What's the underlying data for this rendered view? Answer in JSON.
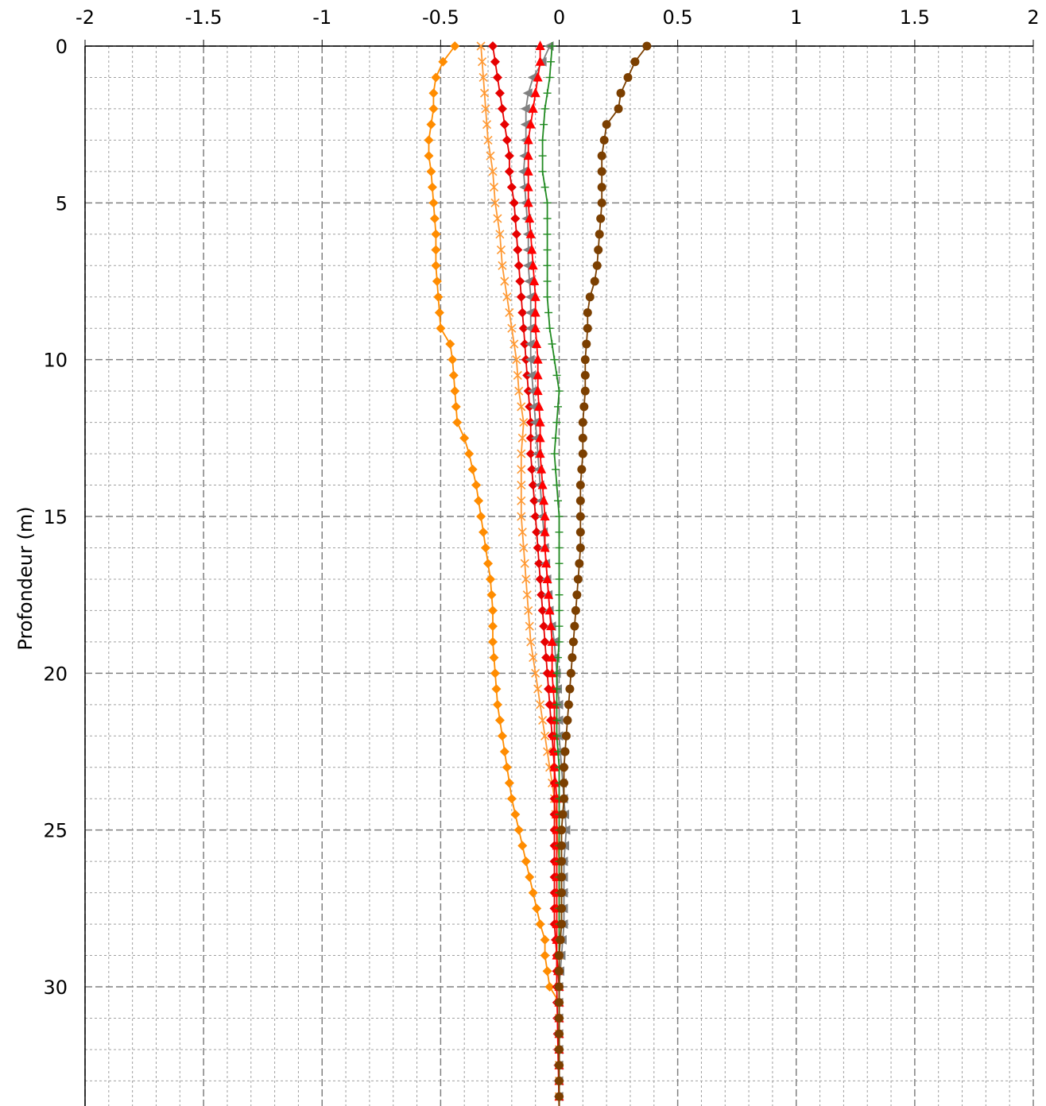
{
  "chart_data": {
    "type": "line",
    "title": "",
    "xlabel": "",
    "ylabel": "Profondeur (m)",
    "xlim": [
      -2,
      2
    ],
    "ylim": [
      0,
      33.8
    ],
    "y_inverted": true,
    "x_axis_position": "top",
    "x_ticks": [
      "-2",
      "-1.5",
      "-1",
      "-0.5",
      "0",
      "0.5",
      "1",
      "1.5",
      "2"
    ],
    "y_ticks": [
      "0",
      "5",
      "10",
      "15",
      "20",
      "25",
      "30"
    ],
    "grid": true,
    "legend": "none",
    "series": [
      {
        "color": "#ff8c00",
        "marker": "diamond",
        "points": [
          [
            -0.44,
            0
          ],
          [
            -0.49,
            0.5
          ],
          [
            -0.52,
            1
          ],
          [
            -0.53,
            1.5
          ],
          [
            -0.53,
            2
          ],
          [
            -0.54,
            2.5
          ],
          [
            -0.55,
            3
          ],
          [
            -0.55,
            3.5
          ],
          [
            -0.54,
            4
          ],
          [
            -0.53,
            5
          ],
          [
            -0.52,
            6
          ],
          [
            -0.52,
            7
          ],
          [
            -0.51,
            8
          ],
          [
            -0.5,
            9
          ],
          [
            -0.46,
            9.5
          ],
          [
            -0.45,
            10
          ],
          [
            -0.44,
            11
          ],
          [
            -0.43,
            12
          ],
          [
            -0.4,
            12.5
          ],
          [
            -0.38,
            13
          ],
          [
            -0.35,
            14
          ],
          [
            -0.33,
            15
          ],
          [
            -0.31,
            16
          ],
          [
            -0.29,
            17
          ],
          [
            -0.28,
            18
          ],
          [
            -0.28,
            19
          ],
          [
            -0.27,
            20
          ],
          [
            -0.26,
            21
          ],
          [
            -0.24,
            22
          ],
          [
            -0.22,
            23
          ],
          [
            -0.2,
            24
          ],
          [
            -0.17,
            25
          ],
          [
            -0.14,
            26
          ],
          [
            -0.11,
            27
          ],
          [
            -0.08,
            28
          ],
          [
            -0.06,
            28.5
          ],
          [
            -0.06,
            29
          ],
          [
            -0.04,
            30
          ],
          [
            0,
            30.5
          ],
          [
            0,
            34
          ]
        ]
      },
      {
        "color": "#ff9933",
        "marker": "x",
        "points": [
          [
            -0.33,
            0
          ],
          [
            -0.32,
            1
          ],
          [
            -0.31,
            2
          ],
          [
            -0.3,
            3
          ],
          [
            -0.28,
            4
          ],
          [
            -0.27,
            5
          ],
          [
            -0.25,
            6
          ],
          [
            -0.24,
            7
          ],
          [
            -0.22,
            8
          ],
          [
            -0.2,
            9
          ],
          [
            -0.18,
            10
          ],
          [
            -0.17,
            11
          ],
          [
            -0.15,
            12
          ],
          [
            -0.16,
            13
          ],
          [
            -0.16,
            14
          ],
          [
            -0.16,
            15
          ],
          [
            -0.15,
            16
          ],
          [
            -0.14,
            17
          ],
          [
            -0.13,
            18
          ],
          [
            -0.12,
            19
          ],
          [
            -0.1,
            20
          ],
          [
            -0.08,
            21
          ],
          [
            -0.06,
            22
          ],
          [
            -0.04,
            23
          ],
          [
            -0.02,
            24
          ],
          [
            -0.01,
            25
          ],
          [
            0,
            26
          ],
          [
            0,
            27
          ],
          [
            0,
            28
          ],
          [
            0,
            29
          ],
          [
            0,
            30
          ],
          [
            0,
            34
          ]
        ]
      },
      {
        "color": "#e60000",
        "marker": "diamond",
        "points": [
          [
            -0.28,
            0
          ],
          [
            -0.27,
            0.5
          ],
          [
            -0.26,
            1
          ],
          [
            -0.25,
            1.5
          ],
          [
            -0.24,
            2
          ],
          [
            -0.23,
            2.5
          ],
          [
            -0.22,
            3
          ],
          [
            -0.21,
            3.5
          ],
          [
            -0.21,
            4
          ],
          [
            -0.2,
            4.5
          ],
          [
            -0.19,
            5
          ],
          [
            -0.18,
            6
          ],
          [
            -0.17,
            7
          ],
          [
            -0.16,
            8
          ],
          [
            -0.15,
            9
          ],
          [
            -0.14,
            10
          ],
          [
            -0.13,
            11
          ],
          [
            -0.12,
            12
          ],
          [
            -0.12,
            13
          ],
          [
            -0.11,
            14
          ],
          [
            -0.1,
            15
          ],
          [
            -0.09,
            16
          ],
          [
            -0.08,
            17
          ],
          [
            -0.07,
            18
          ],
          [
            -0.06,
            19
          ],
          [
            -0.05,
            20
          ],
          [
            -0.04,
            21
          ],
          [
            -0.03,
            22
          ],
          [
            -0.02,
            23
          ],
          [
            -0.02,
            24
          ],
          [
            -0.02,
            25
          ],
          [
            -0.02,
            26
          ],
          [
            -0.02,
            27
          ],
          [
            -0.02,
            28
          ],
          [
            -0.01,
            29
          ],
          [
            -0.01,
            30
          ],
          [
            0,
            34
          ]
        ]
      },
      {
        "color": "#808080",
        "marker": "triangle-left",
        "points": [
          [
            -0.04,
            0
          ],
          [
            -0.07,
            0.5
          ],
          [
            -0.11,
            1
          ],
          [
            -0.13,
            1.5
          ],
          [
            -0.14,
            2
          ],
          [
            -0.14,
            3
          ],
          [
            -0.15,
            4
          ],
          [
            -0.14,
            5
          ],
          [
            -0.13,
            6
          ],
          [
            -0.13,
            7
          ],
          [
            -0.12,
            8
          ],
          [
            -0.12,
            9
          ],
          [
            -0.12,
            10
          ],
          [
            -0.11,
            11
          ],
          [
            -0.1,
            12
          ],
          [
            -0.09,
            13
          ],
          [
            -0.08,
            14
          ],
          [
            -0.07,
            15
          ],
          [
            -0.06,
            16
          ],
          [
            -0.05,
            17
          ],
          [
            -0.04,
            18
          ],
          [
            -0.02,
            19
          ],
          [
            -0.01,
            20
          ],
          [
            0,
            21
          ],
          [
            0,
            22
          ],
          [
            0.01,
            23
          ],
          [
            0.02,
            24
          ],
          [
            0.03,
            25
          ],
          [
            0.02,
            26
          ],
          [
            0.02,
            27
          ],
          [
            0.02,
            28
          ],
          [
            0.01,
            29
          ],
          [
            0,
            30
          ],
          [
            0,
            34
          ]
        ]
      },
      {
        "color": "#ff0000",
        "marker": "triangle",
        "points": [
          [
            -0.08,
            0
          ],
          [
            -0.08,
            0.5
          ],
          [
            -0.09,
            1
          ],
          [
            -0.1,
            1.5
          ],
          [
            -0.11,
            2
          ],
          [
            -0.12,
            2.5
          ],
          [
            -0.13,
            3
          ],
          [
            -0.13,
            4
          ],
          [
            -0.13,
            5
          ],
          [
            -0.12,
            6
          ],
          [
            -0.11,
            7
          ],
          [
            -0.1,
            8
          ],
          [
            -0.1,
            9
          ],
          [
            -0.09,
            10
          ],
          [
            -0.09,
            11
          ],
          [
            -0.08,
            12
          ],
          [
            -0.08,
            13
          ],
          [
            -0.07,
            14
          ],
          [
            -0.06,
            15
          ],
          [
            -0.06,
            16
          ],
          [
            -0.05,
            17
          ],
          [
            -0.04,
            18
          ],
          [
            -0.03,
            19
          ],
          [
            -0.03,
            20
          ],
          [
            -0.02,
            21
          ],
          [
            -0.02,
            22
          ],
          [
            -0.02,
            23
          ],
          [
            -0.01,
            24
          ],
          [
            -0.01,
            25
          ],
          [
            -0.01,
            26
          ],
          [
            -0.01,
            27
          ],
          [
            -0.01,
            28
          ],
          [
            -0.01,
            29
          ],
          [
            0,
            30
          ],
          [
            0,
            34
          ]
        ]
      },
      {
        "color": "#228b22",
        "marker": "plus",
        "points": [
          [
            -0.03,
            0
          ],
          [
            -0.04,
            1
          ],
          [
            -0.06,
            2
          ],
          [
            -0.07,
            3
          ],
          [
            -0.07,
            4
          ],
          [
            -0.05,
            5
          ],
          [
            -0.05,
            6
          ],
          [
            -0.05,
            7
          ],
          [
            -0.05,
            8
          ],
          [
            -0.04,
            9
          ],
          [
            -0.02,
            10
          ],
          [
            0,
            11
          ],
          [
            -0.01,
            12
          ],
          [
            -0.02,
            13
          ],
          [
            -0.01,
            14
          ],
          [
            0,
            15
          ],
          [
            0,
            16
          ],
          [
            0,
            17
          ],
          [
            0,
            18
          ],
          [
            0,
            19
          ],
          [
            -0.01,
            20
          ],
          [
            -0.01,
            21
          ],
          [
            -0.01,
            22
          ],
          [
            0,
            23
          ],
          [
            0,
            24
          ],
          [
            0,
            25
          ],
          [
            0,
            26
          ],
          [
            0,
            27
          ],
          [
            0,
            28
          ],
          [
            0,
            29
          ],
          [
            0,
            30
          ],
          [
            0,
            34
          ]
        ]
      },
      {
        "color": "#7b3f00",
        "marker": "circle",
        "points": [
          [
            0.37,
            0
          ],
          [
            0.32,
            0.5
          ],
          [
            0.29,
            1
          ],
          [
            0.26,
            1.5
          ],
          [
            0.25,
            2
          ],
          [
            0.2,
            2.5
          ],
          [
            0.19,
            3
          ],
          [
            0.18,
            3.5
          ],
          [
            0.18,
            4
          ],
          [
            0.18,
            5
          ],
          [
            0.17,
            6
          ],
          [
            0.16,
            7
          ],
          [
            0.15,
            7.5
          ],
          [
            0.13,
            8
          ],
          [
            0.12,
            8.5
          ],
          [
            0.12,
            9
          ],
          [
            0.11,
            10
          ],
          [
            0.11,
            11
          ],
          [
            0.1,
            12
          ],
          [
            0.1,
            13
          ],
          [
            0.09,
            14
          ],
          [
            0.09,
            15
          ],
          [
            0.09,
            16
          ],
          [
            0.08,
            17
          ],
          [
            0.07,
            18
          ],
          [
            0.06,
            19
          ],
          [
            0.05,
            20
          ],
          [
            0.04,
            21
          ],
          [
            0.03,
            22
          ],
          [
            0.02,
            23
          ],
          [
            0.02,
            24
          ],
          [
            0.01,
            25
          ],
          [
            0.01,
            26
          ],
          [
            0.01,
            27
          ],
          [
            0.01,
            28
          ],
          [
            0,
            29
          ],
          [
            0,
            30
          ],
          [
            0,
            34
          ]
        ]
      }
    ]
  }
}
